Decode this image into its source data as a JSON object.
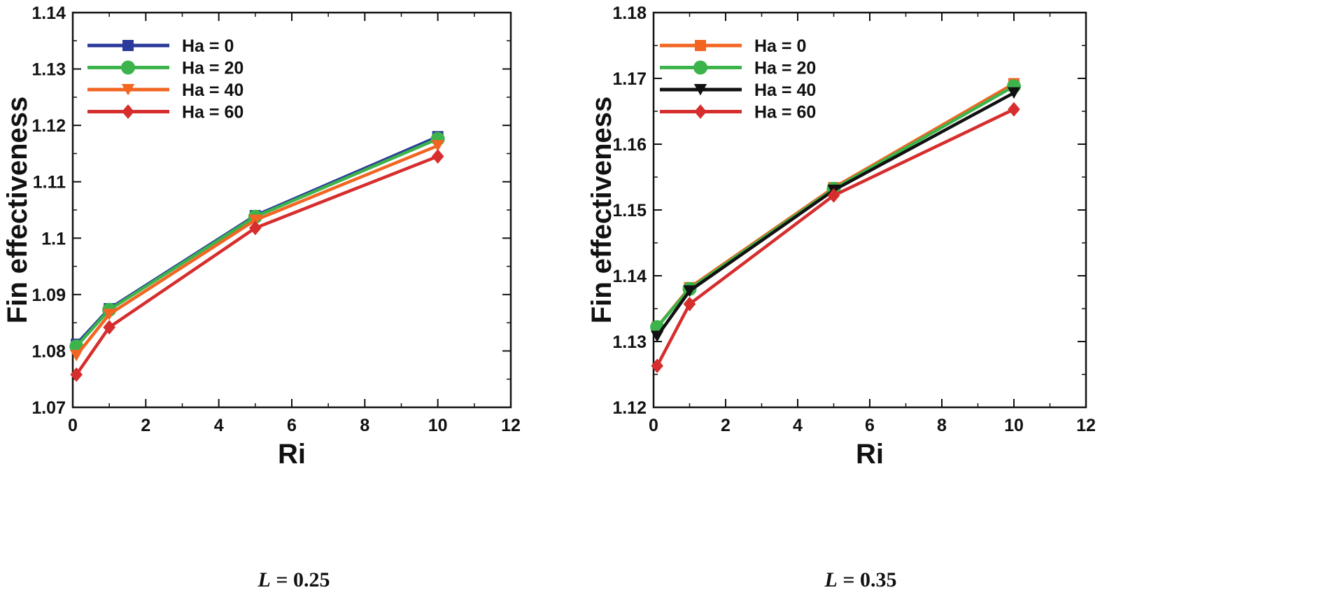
{
  "chart_data": [
    {
      "type": "line",
      "title": "",
      "xlabel": "Ri",
      "ylabel": "Fin effectiveness",
      "xlim": [
        0,
        12
      ],
      "ylim": [
        1.07,
        1.14
      ],
      "xticks": [
        "0",
        "2",
        "4",
        "6",
        "8",
        "10",
        "12"
      ],
      "yticks": [
        "1.07",
        "1.08",
        "1.09",
        "1.1",
        "1.11",
        "1.12",
        "1.13",
        "1.14"
      ],
      "x": [
        0.1,
        1,
        5,
        10
      ],
      "legend_position": "top-left",
      "caption": {
        "variable": "L",
        "text": " = 0.25"
      },
      "series": [
        {
          "name": "Ha = 0",
          "color": "#2b3a9a",
          "marker": "square",
          "values": [
            1.0812,
            1.0875,
            1.104,
            1.118
          ]
        },
        {
          "name": "Ha = 20",
          "color": "#3cb44b",
          "marker": "circle",
          "values": [
            1.0808,
            1.0873,
            1.1038,
            1.1176
          ]
        },
        {
          "name": "Ha = 40",
          "color": "#f26522",
          "marker": "triangle-down",
          "values": [
            1.0792,
            1.0865,
            1.1032,
            1.1164
          ]
        },
        {
          "name": "Ha = 60",
          "color": "#d62d2d",
          "marker": "diamond",
          "values": [
            1.0758,
            1.0842,
            1.1018,
            1.1145
          ]
        }
      ]
    },
    {
      "type": "line",
      "title": "",
      "xlabel": "Ri",
      "ylabel": "Fin effectiveness",
      "xlim": [
        0,
        12
      ],
      "ylim": [
        1.12,
        1.18
      ],
      "xticks": [
        "0",
        "2",
        "4",
        "6",
        "8",
        "10",
        "12"
      ],
      "yticks": [
        "1.12",
        "1.13",
        "1.14",
        "1.15",
        "1.16",
        "1.17",
        "1.18"
      ],
      "x": [
        0.1,
        1,
        5,
        10
      ],
      "legend_position": "top-left",
      "caption": {
        "variable": "L",
        "text": " = 0.35"
      },
      "series": [
        {
          "name": "Ha = 0",
          "color": "#f26522",
          "marker": "square",
          "values": [
            1.1322,
            1.1382,
            1.1534,
            1.1692
          ]
        },
        {
          "name": "Ha = 20",
          "color": "#3cb44b",
          "marker": "circle",
          "values": [
            1.1322,
            1.138,
            1.1532,
            1.1688
          ]
        },
        {
          "name": "Ha = 40",
          "color": "#111111",
          "marker": "triangle-down",
          "values": [
            1.1308,
            1.1377,
            1.153,
            1.1678
          ]
        },
        {
          "name": "Ha = 60",
          "color": "#d62d2d",
          "marker": "diamond",
          "values": [
            1.1263,
            1.1357,
            1.1522,
            1.1653
          ]
        }
      ]
    }
  ]
}
